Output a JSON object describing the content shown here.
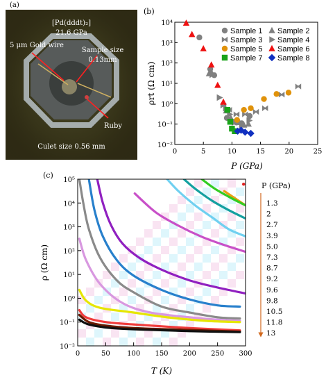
{
  "panels": {
    "a": {
      "label": "(a)"
    },
    "b": {
      "label": "(b)"
    },
    "c": {
      "label": "(c)"
    }
  },
  "photo": {
    "title_line1": "[Pd(dddt)₂]",
    "title_line2": "21.6 GPa",
    "annotations": [
      {
        "text": "5 μm Gold wire"
      },
      {
        "text": "Sample size"
      },
      {
        "text": "0.13mm"
      },
      {
        "text": "Ruby"
      },
      {
        "text": "Culet size 0.56 mm"
      }
    ],
    "colors": {
      "background": "#2e2a14",
      "gasket": "#5a5a5a",
      "ring": "#c0ccd8"
    }
  },
  "chart_data": [
    {
      "type": "scatter",
      "panel": "b",
      "xlabel": "P (GPa)",
      "ylabel": "ρrt (Ω cm)",
      "xlim": [
        0,
        25
      ],
      "ylim_log10": [
        -2,
        4
      ],
      "yscale": "log",
      "xticks": [
        "0",
        "5",
        "10",
        "15",
        "20",
        "25"
      ],
      "yticks": [
        "10⁻²",
        "10⁻¹",
        "10⁰",
        "10¹",
        "10²",
        "10³",
        "10⁴"
      ],
      "legend_position": "top-right",
      "series": [
        {
          "name": "Sample 1",
          "marker": "circle",
          "color": "#808080",
          "x": [
            4.3,
            6.2,
            6.9,
            9.1,
            10.3,
            10.8,
            11.7,
            13.1
          ],
          "y": [
            1800,
            50,
            25,
            0.2,
            0.13,
            0.12,
            0.11,
            0.25
          ]
        },
        {
          "name": "Sample 2",
          "marker": "triangle-up",
          "color": "#808080",
          "x": [
            6.0,
            6.4,
            9.0,
            9.8,
            11.3,
            12.1,
            12.9
          ],
          "y": [
            30,
            35,
            0.45,
            0.2,
            0.12,
            0.09,
            0.1
          ]
        },
        {
          "name": "Sample 3",
          "marker": "bowtie",
          "color": "#808080",
          "x": [
            6.6,
            8.5,
            9.5,
            10.8,
            12.3,
            14.2,
            15.8,
            18.7,
            21.6
          ],
          "y": [
            25,
            0.8,
            0.5,
            0.3,
            0.3,
            0.4,
            0.6,
            2.8,
            7.0
          ]
        },
        {
          "name": "Sample 4",
          "marker": "triangle-right",
          "color": "#808080",
          "x": [
            7.8,
            8.9,
            9.6,
            10.4,
            11.7,
            13.0
          ],
          "y": [
            2.0,
            0.6,
            0.3,
            0.12,
            0.09,
            0.15
          ]
        },
        {
          "name": "Sample 5",
          "marker": "circle",
          "color": "#e0920a",
          "x": [
            10.9,
            12.1,
            13.3,
            15.6,
            17.8,
            19.9
          ],
          "y": [
            0.16,
            0.5,
            0.6,
            1.7,
            3.0,
            3.5
          ]
        },
        {
          "name": "Sample 6",
          "marker": "triangle-up",
          "color": "#ee1111",
          "x": [
            2.0,
            3.0,
            5.0,
            6.4,
            7.5,
            8.5
          ],
          "y": [
            9000,
            2500,
            500,
            80,
            8,
            1.2
          ]
        },
        {
          "name": "Sample 7",
          "marker": "square",
          "color": "#1aa31a",
          "x": [
            9.2,
            9.7,
            10.0,
            10.5
          ],
          "y": [
            0.5,
            0.13,
            0.06,
            0.045
          ]
        },
        {
          "name": "Sample 8",
          "marker": "diamond",
          "color": "#1030c0",
          "x": [
            11.0,
            11.6,
            12.3,
            13.3
          ],
          "y": [
            0.045,
            0.05,
            0.04,
            0.035
          ]
        }
      ]
    },
    {
      "type": "line",
      "panel": "c",
      "xlabel": "T (K)",
      "ylabel": "ρ (Ω cm)",
      "xlim": [
        0,
        300
      ],
      "ylim_log10": [
        -2,
        5
      ],
      "yscale": "log",
      "xticks": [
        "0",
        "50",
        "100",
        "150",
        "200",
        "250",
        "300"
      ],
      "yticks": [
        "10⁻²",
        "10⁻¹",
        "10⁰",
        "10¹",
        "10²",
        "10³",
        "10⁴",
        "10⁵"
      ],
      "legend_title": "P (GPa)",
      "pressures": [
        "1.3",
        "2",
        "2.7",
        "3.9",
        "5.0",
        "7.3",
        "8.7",
        "9.2",
        "9.6",
        "9.8",
        "10.5",
        "11.8",
        "13"
      ],
      "series": [
        {
          "name": "1.3",
          "color": "#e8a010",
          "points": [
            [
              262,
              4.5
            ],
            [
              300,
              3.9
            ]
          ]
        },
        {
          "name": "2",
          "color": "#33cc22",
          "points": [
            [
              222,
              5.0
            ],
            [
              245,
              4.6
            ],
            [
              275,
              4.2
            ],
            [
              300,
              3.9
            ]
          ]
        },
        {
          "name": "2.7",
          "color": "#14a0a0",
          "points": [
            [
              190,
              5.0
            ],
            [
              210,
              4.6
            ],
            [
              240,
              4.1
            ],
            [
              270,
              3.7
            ],
            [
              300,
              3.35
            ]
          ]
        },
        {
          "name": "3.9",
          "color": "#70d0f0",
          "points": [
            [
              160,
              5.0
            ],
            [
              180,
              4.5
            ],
            [
              210,
              3.9
            ],
            [
              240,
              3.4
            ],
            [
              270,
              2.9
            ],
            [
              300,
              2.6
            ]
          ]
        },
        {
          "name": "5.0",
          "color": "#c850c8",
          "points": [
            [
              102,
              4.4
            ],
            [
              140,
              3.6
            ],
            [
              180,
              3.05
            ],
            [
              220,
              2.6
            ],
            [
              260,
              2.25
            ],
            [
              300,
              1.95
            ]
          ]
        },
        {
          "name": "7.3",
          "color": "#9020c0",
          "points": [
            [
              35,
              5.0
            ],
            [
              45,
              4.0
            ],
            [
              60,
              3.05
            ],
            [
              80,
              2.3
            ],
            [
              110,
              1.7
            ],
            [
              150,
              1.2
            ],
            [
              200,
              0.75
            ],
            [
              250,
              0.45
            ],
            [
              300,
              0.2
            ]
          ]
        },
        {
          "name": "8.7",
          "color": "#2880cc",
          "points": [
            [
              20,
              5.0
            ],
            [
              30,
              3.7
            ],
            [
              45,
              2.6
            ],
            [
              70,
              1.6
            ],
            [
              100,
              0.95
            ],
            [
              150,
              0.35
            ],
            [
              200,
              -0.05
            ],
            [
              250,
              -0.3
            ],
            [
              290,
              -0.35
            ]
          ]
        },
        {
          "name": "9.2",
          "color": "#8a8a8a",
          "points": [
            [
              3,
              5.0
            ],
            [
              10,
              4.0
            ],
            [
              20,
              2.9
            ],
            [
              40,
              1.7
            ],
            [
              70,
              0.75
            ],
            [
              100,
              0.25
            ],
            [
              150,
              -0.35
            ],
            [
              200,
              -0.6
            ],
            [
              250,
              -0.8
            ],
            [
              290,
              -0.85
            ]
          ]
        },
        {
          "name": "9.6",
          "color": "#d898e0",
          "points": [
            [
              3,
              2.5
            ],
            [
              15,
              1.6
            ],
            [
              40,
              0.6
            ],
            [
              80,
              -0.2
            ],
            [
              130,
              -0.6
            ],
            [
              200,
              -0.8
            ],
            [
              250,
              -0.9
            ],
            [
              290,
              -0.95
            ]
          ]
        },
        {
          "name": "9.8",
          "color": "#e6e600",
          "points": [
            [
              3,
              0.35
            ],
            [
              15,
              -0.1
            ],
            [
              40,
              -0.4
            ],
            [
              100,
              -0.6
            ],
            [
              160,
              -0.8
            ],
            [
              230,
              -0.95
            ],
            [
              290,
              -1.0
            ]
          ]
        },
        {
          "name": "10.5",
          "color": "#f03c3c",
          "points": [
            [
              3,
              -0.5
            ],
            [
              15,
              -0.8
            ],
            [
              50,
              -1.0
            ],
            [
              100,
              -1.1
            ],
            [
              200,
              -1.25
            ],
            [
              290,
              -1.35
            ]
          ]
        },
        {
          "name": "11.8",
          "color": "#6a1a00",
          "points": [
            [
              3,
              -0.7
            ],
            [
              20,
              -1.0
            ],
            [
              50,
              -1.15
            ],
            [
              100,
              -1.25
            ],
            [
              200,
              -1.33
            ],
            [
              290,
              -1.4
            ]
          ]
        },
        {
          "name": "13",
          "color": "#101010",
          "points": [
            [
              3,
              -0.9
            ],
            [
              20,
              -1.1
            ],
            [
              60,
              -1.25
            ],
            [
              120,
              -1.32
            ],
            [
              200,
              -1.38
            ],
            [
              290,
              -1.42
            ]
          ]
        }
      ],
      "marker_points": [
        {
          "color": "#e02020",
          "x": 299,
          "y": 4.85
        }
      ],
      "shading": {
        "colors": [
          "#d8f4fb",
          "#f8dff0"
        ]
      }
    }
  ]
}
